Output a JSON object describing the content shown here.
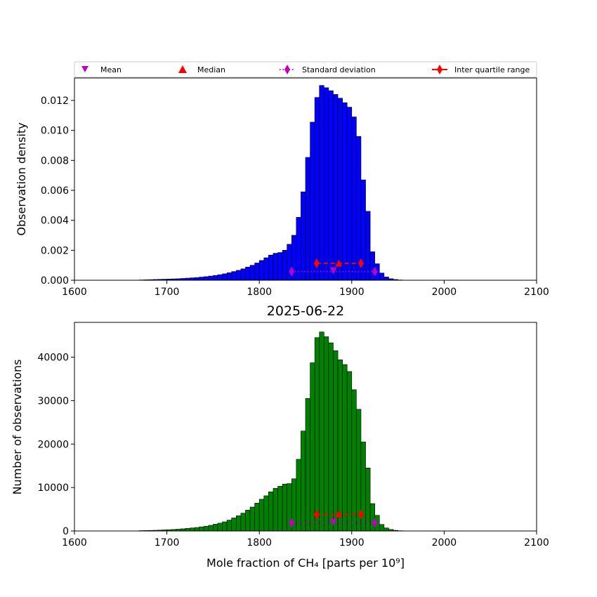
{
  "legend": {
    "items": [
      {
        "label": "Mean",
        "marker": "triangle-down",
        "color": "#bf00bf"
      },
      {
        "label": "Median",
        "marker": "triangle-up",
        "color": "#ff0000"
      },
      {
        "label": "Standard deviation",
        "marker": "thin-diamond",
        "line": "dotted",
        "color": "#bf00bf"
      },
      {
        "label": "Inter quartile range",
        "marker": "thin-diamond",
        "line": "dashed",
        "color": "#ff0000"
      }
    ]
  },
  "chart_data": [
    {
      "type": "bar",
      "name": "density-histogram",
      "title": "",
      "xlabel": "",
      "ylabel": "Observation density",
      "xlim": [
        1600,
        2100
      ],
      "ylim": [
        0,
        0.0135
      ],
      "xticks": [
        "1600",
        "1700",
        "1800",
        "1900",
        "2000",
        "2100"
      ],
      "yticks": [
        "0.000",
        "0.002",
        "0.004",
        "0.006",
        "0.008",
        "0.010",
        "0.012"
      ],
      "bar_color": "#0000ff",
      "bin_start": 1670,
      "bin_width": 5,
      "values": [
        2e-05,
        3e-05,
        4e-05,
        5e-05,
        6e-05,
        7e-05,
        8e-05,
        9e-05,
        0.0001,
        0.00012,
        0.00014,
        0.00016,
        0.00018,
        0.00021,
        0.00024,
        0.00028,
        0.00032,
        0.00037,
        0.00043,
        0.0005,
        0.00058,
        0.00066,
        0.00076,
        0.00088,
        0.001,
        0.00115,
        0.00132,
        0.0015,
        0.00168,
        0.0018,
        0.00185,
        0.002,
        0.0024,
        0.003,
        0.0042,
        0.0059,
        0.0082,
        0.01055,
        0.0122,
        0.013,
        0.01285,
        0.01265,
        0.0124,
        0.01215,
        0.01185,
        0.01155,
        0.0109,
        0.0096,
        0.0067,
        0.0046,
        0.0019,
        0.0011,
        0.00048,
        0.00022,
        0.0001,
        5e-05,
        2e-05
      ],
      "summary": {
        "mean": {
          "x": 1880,
          "y": 0.00063
        },
        "median": {
          "x": 1886,
          "y": 0.0011
        },
        "std_range": [
          1835,
          1925
        ],
        "std_y": 0.00058,
        "iqr_range": [
          1862,
          1910
        ],
        "iqr_y": 0.00113
      }
    },
    {
      "type": "bar",
      "name": "count-histogram",
      "title": "2025-06-22",
      "xlabel": "Mole fraction of CH₄ [parts per 10⁹]",
      "ylabel": "Number of observations",
      "xlim": [
        1600,
        2100
      ],
      "ylim": [
        0,
        48000
      ],
      "xticks": [
        "1600",
        "1700",
        "1800",
        "1900",
        "2000",
        "2100"
      ],
      "yticks": [
        "0",
        "10000",
        "20000",
        "30000",
        "40000"
      ],
      "bar_color": "#008000",
      "bin_start": 1670,
      "bin_width": 5,
      "values": [
        80,
        100,
        130,
        160,
        200,
        250,
        300,
        350,
        420,
        500,
        600,
        700,
        800,
        950,
        1100,
        1300,
        1550,
        1800,
        2100,
        2500,
        3000,
        3500,
        4100,
        4800,
        5500,
        6400,
        7300,
        8100,
        9000,
        9800,
        10300,
        10800,
        10900,
        12000,
        16500,
        23000,
        30500,
        38700,
        44500,
        45800,
        44700,
        43300,
        41500,
        39400,
        38300,
        36700,
        32500,
        28000,
        20500,
        14500,
        6300,
        3600,
        1500,
        700,
        350,
        150,
        60
      ],
      "summary": {
        "mean": {
          "x": 1880,
          "y": 2000
        },
        "median": {
          "x": 1886,
          "y": 3800
        },
        "std_range": [
          1835,
          1925
        ],
        "std_y": 1900,
        "iqr_range": [
          1862,
          1910
        ],
        "iqr_y": 3800
      }
    }
  ]
}
